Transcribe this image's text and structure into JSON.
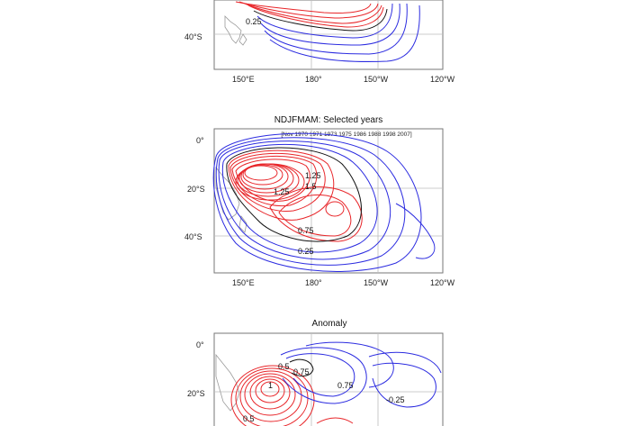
{
  "figure": {
    "panels": [
      {
        "id": "top",
        "title": "",
        "subtitle": "",
        "y_ticks": [
          "40°S"
        ],
        "x_ticks": [
          "150°E",
          "180°",
          "150°W",
          "120°W"
        ],
        "contour_labels": [
          "0.25"
        ]
      },
      {
        "id": "middle",
        "title": "NDJFMAM: Selected years",
        "subtitle": "[Nov 1970 1971 1973 1975 1986 1988 1998 2007]",
        "y_ticks": [
          "0°",
          "20°S",
          "40°S"
        ],
        "x_ticks": [
          "150°E",
          "180°",
          "150°W",
          "120°W"
        ],
        "contour_labels": [
          "1.25",
          "1.5",
          "1.25",
          "0.75",
          "0.25"
        ]
      },
      {
        "id": "bottom",
        "title": "Anomaly",
        "subtitle": "",
        "y_ticks": [
          "0°",
          "20°S"
        ],
        "x_ticks": [],
        "contour_labels": [
          "0.5",
          "0.75",
          "0.75",
          "-0.25",
          "0.5",
          "1"
        ]
      }
    ],
    "colors": {
      "positive_contour": "#e8262a",
      "mid_contour": "#111111",
      "low_contour": "#2c2ce0",
      "coast": "#9a9a9a",
      "frame": "#777777",
      "grid": "#bdbdbd"
    }
  }
}
